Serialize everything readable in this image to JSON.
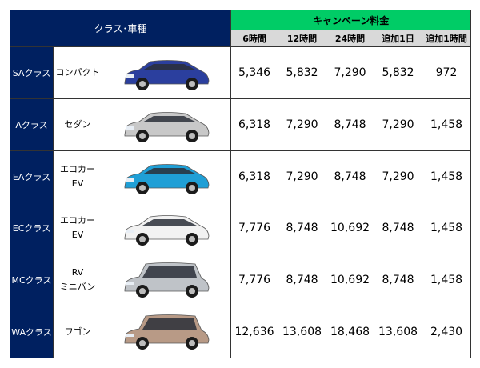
{
  "header": {
    "class_type": "クラス･車種",
    "campaign": "キャンペーン料金",
    "columns": [
      "6時間",
      "12時間",
      "24時間",
      "追加1日",
      "追加1時間"
    ]
  },
  "rows": [
    {
      "class": "SAクラス",
      "type": [
        "コンパクト"
      ],
      "car": "compact-car-image",
      "car_color": "#2b3f9e",
      "prices": [
        "5,346",
        "5,832",
        "7,290",
        "5,832",
        "972"
      ]
    },
    {
      "class": "Aクラス",
      "type": [
        "セダン"
      ],
      "car": "sedan-car-image",
      "car_color": "#c8c8c8",
      "prices": [
        "6,318",
        "7,290",
        "8,748",
        "7,290",
        "1,458"
      ]
    },
    {
      "class": "EAクラス",
      "type": [
        "エコカー",
        "EV"
      ],
      "car": "eco-car-image",
      "car_color": "#1f9fd6",
      "prices": [
        "6,318",
        "7,290",
        "8,748",
        "7,290",
        "1,458"
      ]
    },
    {
      "class": "ECクラス",
      "type": [
        "エコカー",
        "EV"
      ],
      "car": "prius-car-image",
      "car_color": "#f2f2f2",
      "prices": [
        "7,776",
        "8,748",
        "10,692",
        "8,748",
        "1,458"
      ]
    },
    {
      "class": "MCクラス",
      "type": [
        "RV",
        "ミニバン"
      ],
      "car": "minivan-car-image",
      "car_color": "#bfc3c8",
      "prices": [
        "7,776",
        "8,748",
        "10,692",
        "8,748",
        "1,458"
      ]
    },
    {
      "class": "WAクラス",
      "type": [
        "ワゴン"
      ],
      "car": "wagon-car-image",
      "car_color": "#b89a86",
      "prices": [
        "12,636",
        "13,608",
        "18,468",
        "13,608",
        "2,430"
      ]
    }
  ]
}
